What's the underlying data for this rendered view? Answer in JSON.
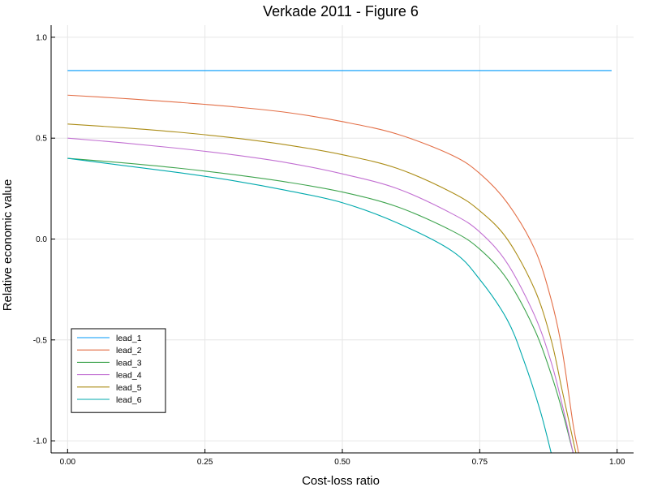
{
  "chart_data": {
    "type": "line",
    "title": "Verkade 2011 - Figure 6",
    "xlabel": "Cost-loss ratio",
    "ylabel": "Relative economic value",
    "xlim": [
      -0.03,
      1.03
    ],
    "ylim": [
      -1.06,
      1.06
    ],
    "x_ticks": [
      0.0,
      0.25,
      0.5,
      0.75,
      1.0
    ],
    "x_tick_labels": [
      "0.00",
      "0.25",
      "0.50",
      "0.75",
      "1.00"
    ],
    "y_ticks": [
      -1.0,
      -0.5,
      0.0,
      0.5,
      1.0
    ],
    "y_tick_labels": [
      "-1.0",
      "-0.5",
      "0.0",
      "0.5",
      "1.0"
    ],
    "grid": true,
    "legend_position": "bottom-left",
    "series": [
      {
        "name": "lead_1",
        "color": "#009AFA",
        "x": [
          0.0,
          0.99
        ],
        "y": [
          0.835,
          0.835
        ]
      },
      {
        "name": "lead_2",
        "color": "#E36F47",
        "x": [
          0.0,
          0.1,
          0.2,
          0.3,
          0.4,
          0.5,
          0.6,
          0.7,
          0.75,
          0.8,
          0.85,
          0.88,
          0.9,
          0.92,
          0.93
        ],
        "y": [
          0.713,
          0.697,
          0.678,
          0.656,
          0.627,
          0.582,
          0.52,
          0.415,
          0.325,
          0.18,
          -0.05,
          -0.3,
          -0.55,
          -0.92,
          -1.06
        ]
      },
      {
        "name": "lead_3",
        "color": "#3EA44E",
        "x": [
          0.0,
          0.1,
          0.2,
          0.3,
          0.4,
          0.5,
          0.6,
          0.7,
          0.75,
          0.8,
          0.85,
          0.88,
          0.9,
          0.92
        ],
        "y": [
          0.4,
          0.378,
          0.352,
          0.32,
          0.282,
          0.233,
          0.16,
          0.04,
          -0.05,
          -0.2,
          -0.45,
          -0.67,
          -0.85,
          -1.06
        ]
      },
      {
        "name": "lead_4",
        "color": "#C270D2",
        "x": [
          0.0,
          0.1,
          0.2,
          0.3,
          0.4,
          0.5,
          0.6,
          0.7,
          0.75,
          0.8,
          0.85,
          0.88,
          0.9,
          0.92
        ],
        "y": [
          0.5,
          0.477,
          0.45,
          0.418,
          0.378,
          0.323,
          0.25,
          0.125,
          0.035,
          -0.12,
          -0.38,
          -0.61,
          -0.82,
          -1.06
        ]
      },
      {
        "name": "lead_5",
        "color": "#AC8D18",
        "x": [
          0.0,
          0.1,
          0.2,
          0.3,
          0.4,
          0.5,
          0.6,
          0.7,
          0.75,
          0.8,
          0.85,
          0.88,
          0.9,
          0.925
        ],
        "y": [
          0.57,
          0.552,
          0.53,
          0.502,
          0.466,
          0.418,
          0.35,
          0.23,
          0.14,
          0.0,
          -0.25,
          -0.5,
          -0.75,
          -1.06
        ]
      },
      {
        "name": "lead_6",
        "color": "#00A9AD",
        "x": [
          0.0,
          0.1,
          0.2,
          0.3,
          0.4,
          0.5,
          0.6,
          0.7,
          0.75,
          0.8,
          0.83,
          0.86,
          0.88
        ],
        "y": [
          0.4,
          0.365,
          0.33,
          0.29,
          0.24,
          0.18,
          0.08,
          -0.06,
          -0.2,
          -0.4,
          -0.6,
          -0.85,
          -1.06
        ]
      }
    ]
  }
}
